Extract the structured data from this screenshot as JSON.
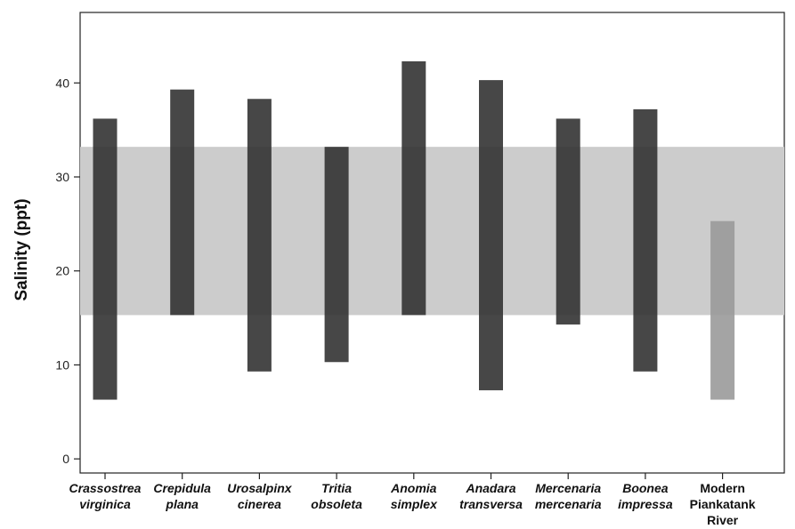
{
  "chart_data": {
    "type": "bar",
    "subtype": "floating-range",
    "title": "",
    "xlabel": "",
    "ylabel": "Salinity (ppt)",
    "ylim": [
      -1.5,
      47.5
    ],
    "yticks": [
      0,
      10,
      20,
      30,
      40
    ],
    "grid": false,
    "legend": "none",
    "reference_band": {
      "from": 15.3,
      "to": 33.2,
      "color": "#cccccc"
    },
    "categories": [
      {
        "lines": [
          "Crassostrea",
          "virginica"
        ],
        "italic": true
      },
      {
        "lines": [
          "Crepidula",
          "plana"
        ],
        "italic": true
      },
      {
        "lines": [
          "Urosalpinx",
          "cinerea"
        ],
        "italic": true
      },
      {
        "lines": [
          "Tritia",
          "obsoleta"
        ],
        "italic": true
      },
      {
        "lines": [
          "Anomia",
          "simplex"
        ],
        "italic": true
      },
      {
        "lines": [
          "Anadara",
          "transversa"
        ],
        "italic": true
      },
      {
        "lines": [
          "Mercenaria",
          "mercenaria"
        ],
        "italic": true
      },
      {
        "lines": [
          "Boonea",
          "impressa"
        ],
        "italic": true
      },
      {
        "lines": [
          "Modern",
          "Piankatank",
          "River"
        ],
        "italic": false
      }
    ],
    "ranges": [
      {
        "low": 6.3,
        "high": 36.2,
        "color": "#333333"
      },
      {
        "low": 15.3,
        "high": 39.3,
        "color": "#333333"
      },
      {
        "low": 9.3,
        "high": 38.3,
        "color": "#333333"
      },
      {
        "low": 10.3,
        "high": 33.2,
        "color": "#333333"
      },
      {
        "low": 15.3,
        "high": 42.3,
        "color": "#333333"
      },
      {
        "low": 7.3,
        "high": 40.3,
        "color": "#333333"
      },
      {
        "low": 14.3,
        "high": 36.2,
        "color": "#333333"
      },
      {
        "low": 9.3,
        "high": 37.2,
        "color": "#333333"
      },
      {
        "low": 6.3,
        "high": 25.3,
        "color": "#9a9a9a"
      }
    ]
  }
}
